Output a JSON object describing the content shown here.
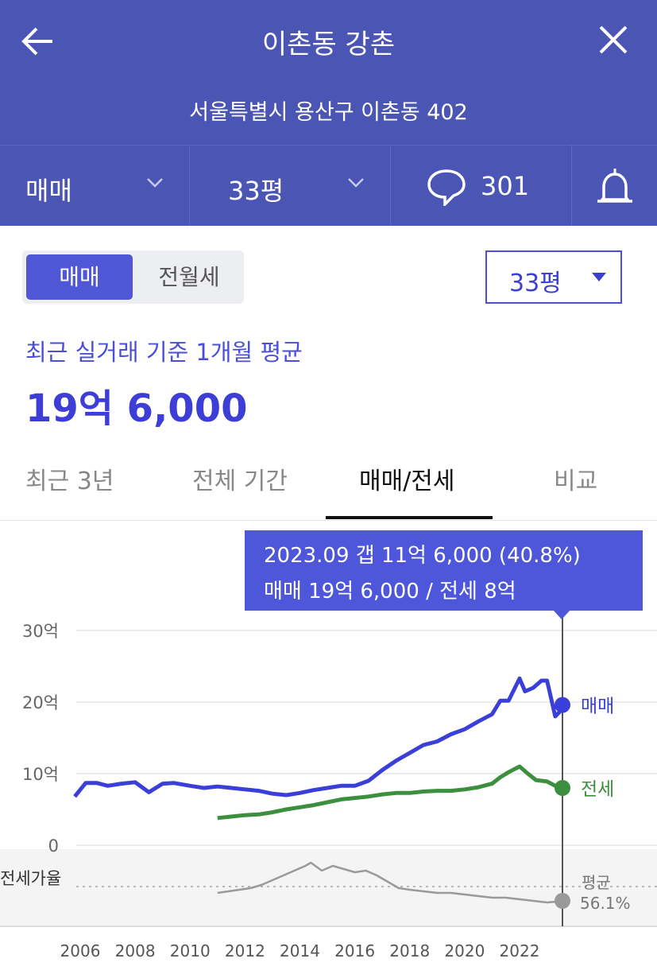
{
  "header": {
    "title": "이촌동 강촌",
    "address": "서울특별시 용산구 이촌동 402",
    "deal_type": "매매",
    "size": "33평",
    "comment_count": "301"
  },
  "toggle": {
    "active": "매매",
    "inactive": "전월세"
  },
  "area_select": {
    "value": "33평"
  },
  "summary": {
    "label": "최근 실거래 기준 1개월 평균",
    "value": "19억 6,000"
  },
  "tabs": [
    "최근 3년",
    "전체 기간",
    "매매/전세",
    "비교"
  ],
  "tooltip": {
    "line1": "2023.09  갭 11억 6,000 (40.8%)",
    "line2": "매매 19억 6,000 / 전세 8억"
  },
  "colors": {
    "header": "#4b55b3",
    "accent": "#3c3ed6",
    "sale": "#3a3fd9",
    "jeonse": "#3b8f3e",
    "ratio": "#9a9a9a"
  },
  "chart_data": {
    "type": "line",
    "x_ticks": [
      "2006",
      "2008",
      "2010",
      "2012",
      "2014",
      "2016",
      "2018",
      "2020",
      "2022"
    ],
    "y_ticks": [
      "30억",
      "20억",
      "10억",
      "0"
    ],
    "ylim": [
      0,
      30
    ],
    "series": [
      {
        "name": "매매",
        "x": [
          2005.8,
          2006.2,
          2006.6,
          2007.0,
          2007.5,
          2008.0,
          2008.5,
          2009.0,
          2009.4,
          2010.0,
          2010.5,
          2011.0,
          2011.5,
          2012.0,
          2012.5,
          2013.0,
          2013.5,
          2014.0,
          2014.5,
          2015.0,
          2015.5,
          2016.0,
          2016.5,
          2017.0,
          2017.5,
          2018.0,
          2018.5,
          2019.0,
          2019.5,
          2020.0,
          2020.5,
          2021.0,
          2021.3,
          2021.6,
          2022.0,
          2022.2,
          2022.5,
          2022.8,
          2023.0,
          2023.3,
          2023.7
        ],
        "values": [
          6.8,
          8.7,
          8.7,
          8.3,
          8.6,
          8.8,
          7.4,
          8.6,
          8.7,
          8.3,
          8.0,
          8.2,
          8.0,
          7.8,
          7.6,
          7.2,
          7.0,
          7.3,
          7.7,
          8.0,
          8.3,
          8.3,
          9.0,
          10.5,
          11.8,
          12.9,
          14.0,
          14.5,
          15.5,
          16.2,
          17.3,
          18.3,
          20.2,
          20.2,
          23.3,
          21.5,
          22.0,
          23.0,
          23.0,
          18.0,
          19.6
        ]
      },
      {
        "name": "전세",
        "x": [
          2011.0,
          2011.5,
          2012.0,
          2012.5,
          2013.0,
          2013.5,
          2014.0,
          2014.5,
          2015.0,
          2015.5,
          2016.0,
          2016.5,
          2017.0,
          2017.5,
          2018.0,
          2018.5,
          2019.0,
          2019.5,
          2020.0,
          2020.5,
          2021.0,
          2021.3,
          2021.6,
          2022.0,
          2022.3,
          2022.6,
          2023.0,
          2023.3,
          2023.7
        ],
        "values": [
          3.8,
          4.0,
          4.2,
          4.3,
          4.6,
          5.0,
          5.3,
          5.6,
          6.0,
          6.4,
          6.6,
          6.8,
          7.1,
          7.3,
          7.3,
          7.5,
          7.6,
          7.6,
          7.8,
          8.1,
          8.6,
          9.5,
          10.2,
          11.0,
          10.0,
          9.1,
          8.9,
          8.3,
          8.0
        ]
      }
    ],
    "ratio": {
      "name": "전세가율",
      "avg_label": "평균",
      "avg_value": "56.1%"
    }
  }
}
